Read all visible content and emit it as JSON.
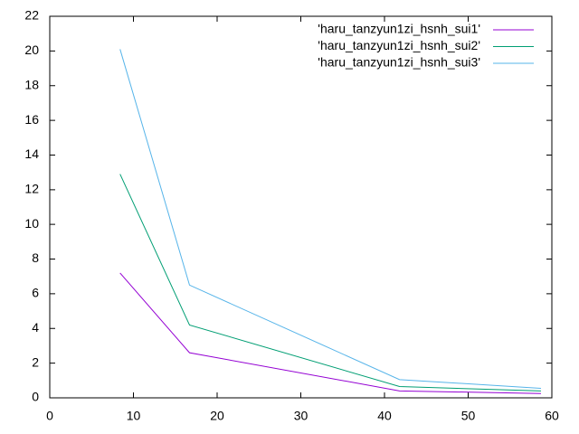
{
  "chart_data": {
    "type": "line",
    "x": [
      8.4,
      16.7,
      41.8,
      58.7
    ],
    "series": [
      {
        "name": "'haru_tanzyun1zi_hsnh_sui1'",
        "color": "#9400d3",
        "values": [
          7.2,
          2.6,
          0.4,
          0.25
        ]
      },
      {
        "name": "'haru_tanzyun1zi_hsnh_sui2'",
        "color": "#009e73",
        "values": [
          12.9,
          4.2,
          0.65,
          0.4
        ]
      },
      {
        "name": "'haru_tanzyun1zi_hsnh_sui3'",
        "color": "#56b4e9",
        "values": [
          20.1,
          6.5,
          1.05,
          0.55
        ]
      }
    ],
    "xlim": [
      0,
      60
    ],
    "xticks": [
      0,
      10,
      20,
      30,
      40,
      50,
      60
    ],
    "ylim": [
      0,
      22
    ],
    "yticks": [
      0,
      2,
      4,
      6,
      8,
      10,
      12,
      14,
      16,
      18,
      20,
      22
    ],
    "legend": "top-right"
  }
}
